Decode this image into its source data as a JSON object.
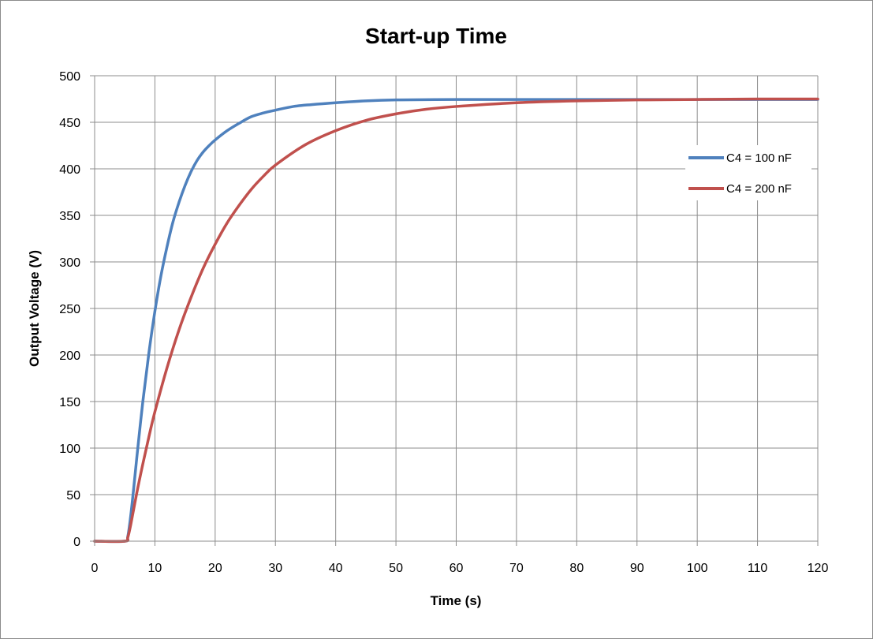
{
  "chart_data": {
    "type": "line",
    "title": "Start-up Time",
    "xlabel": "Time (s)",
    "ylabel": "Output Voltage (V)",
    "xlim": [
      0,
      120
    ],
    "ylim": [
      0,
      500
    ],
    "xticks": [
      0,
      10,
      20,
      30,
      40,
      50,
      60,
      70,
      80,
      90,
      100,
      110,
      120
    ],
    "yticks": [
      0,
      50,
      100,
      150,
      200,
      250,
      300,
      350,
      400,
      450,
      500
    ],
    "grid": true,
    "legend_position": "right",
    "series": [
      {
        "name": "C4 = 100 nF",
        "color": "#4F81BD",
        "x": [
          0,
          5,
          5.5,
          6,
          6.5,
          7,
          8,
          9,
          10,
          11,
          12,
          13,
          14,
          15,
          16,
          17,
          18,
          19,
          20,
          22,
          24,
          26,
          28,
          30,
          33,
          36,
          40,
          45,
          50,
          60,
          70,
          80,
          90,
          100,
          110,
          120
        ],
        "y": [
          0,
          0,
          5,
          28,
          58,
          90,
          150,
          202,
          247,
          285,
          316,
          343,
          364,
          382,
          397,
          409,
          418,
          425,
          431,
          441,
          449,
          456,
          460,
          463,
          467,
          469,
          471,
          473,
          474,
          474.5,
          474.5,
          474.5,
          474.5,
          474.5,
          474.5,
          474.5
        ]
      },
      {
        "name": "C4 = 200 nF",
        "color": "#C0504D",
        "x": [
          0,
          5,
          5.5,
          6,
          7,
          8,
          9,
          10,
          12,
          14,
          16,
          18,
          20,
          22,
          24,
          26,
          28,
          30,
          35,
          40,
          45,
          50,
          55,
          60,
          70,
          80,
          90,
          100,
          110,
          120
        ],
        "y": [
          0,
          0,
          4,
          18,
          52,
          83,
          112,
          139,
          186,
          227,
          262,
          293,
          319,
          342,
          361,
          378,
          392,
          404,
          426,
          441,
          452,
          459,
          464,
          467,
          471,
          473,
          474,
          474.5,
          475,
          475
        ]
      }
    ]
  }
}
